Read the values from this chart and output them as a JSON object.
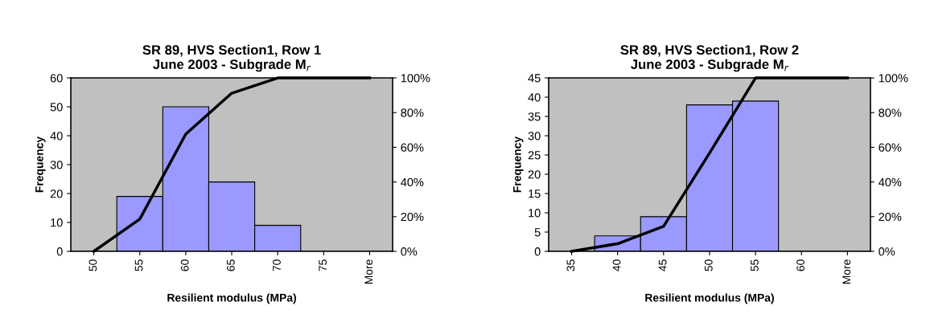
{
  "chart_data": [
    {
      "type": "bar",
      "title": "SR 89, HVS Section1, Row 1\nJune 2003 - Subgrade M$_{r}$",
      "xlabel": "Resilient modulus (MPa)",
      "ylabel": "Frequency",
      "categories": [
        "50",
        "55",
        "60",
        "65",
        "70",
        "75",
        "More"
      ],
      "series": [
        {
          "color": "#9999ff",
          "values": [
            0,
            19,
            50,
            24,
            9,
            0,
            0
          ]
        },
        {
          "type": "line",
          "axis": "y2",
          "color": "#000000",
          "values": [
            0,
            18.6,
            67.6,
            91.2,
            100,
            100,
            100
          ]
        }
      ],
      "ylim": [
        0,
        60
      ],
      "yticks": [
        0,
        10,
        20,
        30,
        40,
        50,
        60
      ],
      "y2lim": [
        0,
        100
      ],
      "y2ticks": [
        {
          "value": 0,
          "label": "0%"
        },
        {
          "value": 20,
          "label": "20%"
        },
        {
          "value": 40,
          "label": "40%"
        },
        {
          "value": 60,
          "label": "60%"
        },
        {
          "value": 80,
          "label": "80%"
        },
        {
          "value": 100,
          "label": "100%"
        }
      ],
      "grid": false,
      "marker": "none",
      "line_style": "solid"
    },
    {
      "type": "bar",
      "title": "SR 89, HVS Section1, Row 2\nJune 2003 - Subgrade M$_{r}$",
      "xlabel": "Resilient modulus (MPa)",
      "ylabel": "Frequency",
      "categories": [
        "35",
        "40",
        "45",
        "50",
        "55",
        "60",
        "More"
      ],
      "series": [
        {
          "color": "#9999ff",
          "values": [
            0,
            4,
            9,
            38,
            39,
            0,
            0
          ]
        },
        {
          "type": "line",
          "axis": "y2",
          "color": "#000000",
          "values": [
            0,
            4.4,
            14.4,
            56.7,
            100,
            100,
            100
          ]
        }
      ],
      "ylim": [
        0,
        45
      ],
      "yticks": [
        0,
        5,
        10,
        15,
        20,
        25,
        30,
        35,
        40,
        45
      ],
      "y2lim": [
        0,
        100
      ],
      "y2ticks": [
        {
          "value": 0,
          "label": "0%"
        },
        {
          "value": 20,
          "label": "20%"
        },
        {
          "value": 40,
          "label": "40%"
        },
        {
          "value": 60,
          "label": "60%"
        },
        {
          "value": 80,
          "label": "80%"
        },
        {
          "value": 100,
          "label": "100%"
        }
      ],
      "grid": false,
      "marker": "none",
      "line_style": "solid"
    }
  ]
}
